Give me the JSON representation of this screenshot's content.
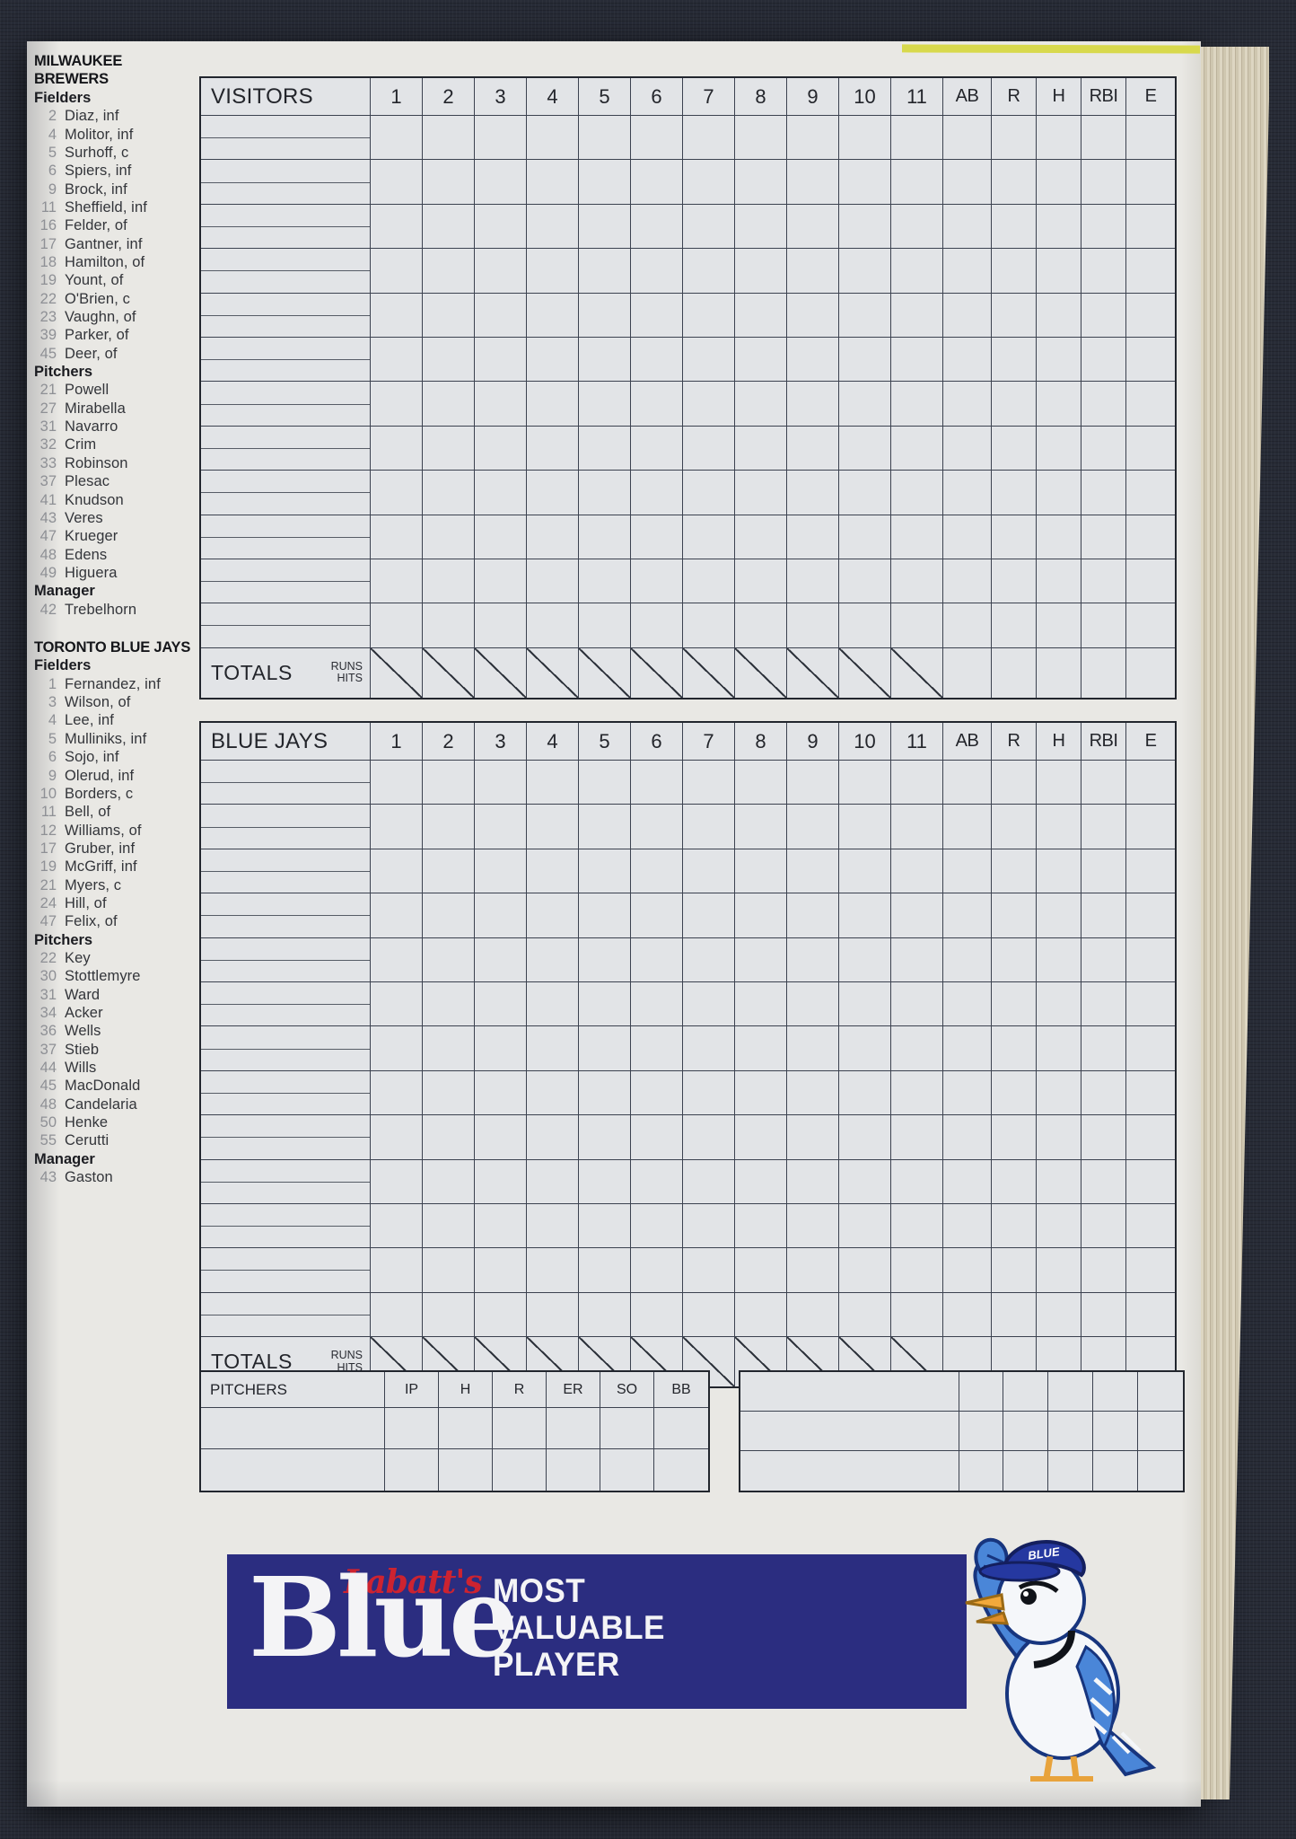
{
  "rosters": [
    {
      "title": "MILWAUKEE BREWERS",
      "sections": [
        {
          "label": "Fielders",
          "players": [
            {
              "num": "2",
              "name": "Diaz, inf"
            },
            {
              "num": "4",
              "name": "Molitor, inf"
            },
            {
              "num": "5",
              "name": "Surhoff, c"
            },
            {
              "num": "6",
              "name": "Spiers, inf"
            },
            {
              "num": "9",
              "name": "Brock, inf"
            },
            {
              "num": "11",
              "name": "Sheffield, inf"
            },
            {
              "num": "16",
              "name": "Felder, of"
            },
            {
              "num": "17",
              "name": "Gantner, inf"
            },
            {
              "num": "18",
              "name": "Hamilton, of"
            },
            {
              "num": "19",
              "name": "Yount, of"
            },
            {
              "num": "22",
              "name": "O'Brien, c"
            },
            {
              "num": "23",
              "name": "Vaughn, of"
            },
            {
              "num": "39",
              "name": "Parker, of"
            },
            {
              "num": "45",
              "name": "Deer, of"
            }
          ]
        },
        {
          "label": "Pitchers",
          "players": [
            {
              "num": "21",
              "name": "Powell"
            },
            {
              "num": "27",
              "name": "Mirabella"
            },
            {
              "num": "31",
              "name": "Navarro"
            },
            {
              "num": "32",
              "name": "Crim"
            },
            {
              "num": "33",
              "name": "Robinson"
            },
            {
              "num": "37",
              "name": "Plesac"
            },
            {
              "num": "41",
              "name": "Knudson"
            },
            {
              "num": "43",
              "name": "Veres"
            },
            {
              "num": "47",
              "name": "Krueger"
            },
            {
              "num": "48",
              "name": "Edens"
            },
            {
              "num": "49",
              "name": "Higuera"
            }
          ]
        },
        {
          "label": "Manager",
          "players": [
            {
              "num": "42",
              "name": "Trebelhorn"
            }
          ]
        }
      ]
    },
    {
      "title": "TORONTO BLUE JAYS",
      "sections": [
        {
          "label": "Fielders",
          "players": [
            {
              "num": "1",
              "name": "Fernandez, inf"
            },
            {
              "num": "3",
              "name": "Wilson, of"
            },
            {
              "num": "4",
              "name": "Lee, inf"
            },
            {
              "num": "5",
              "name": "Mulliniks, inf"
            },
            {
              "num": "6",
              "name": "Sojo, inf"
            },
            {
              "num": "9",
              "name": "Olerud, inf"
            },
            {
              "num": "10",
              "name": "Borders, c"
            },
            {
              "num": "11",
              "name": "Bell, of"
            },
            {
              "num": "12",
              "name": "Williams, of"
            },
            {
              "num": "17",
              "name": "Gruber, inf"
            },
            {
              "num": "19",
              "name": "McGriff, inf"
            },
            {
              "num": "21",
              "name": "Myers, c"
            },
            {
              "num": "24",
              "name": "Hill, of"
            },
            {
              "num": "47",
              "name": "Felix, of"
            }
          ]
        },
        {
          "label": "Pitchers",
          "players": [
            {
              "num": "22",
              "name": "Key"
            },
            {
              "num": "30",
              "name": "Stottlemyre"
            },
            {
              "num": "31",
              "name": "Ward"
            },
            {
              "num": "34",
              "name": "Acker"
            },
            {
              "num": "36",
              "name": "Wells"
            },
            {
              "num": "37",
              "name": "Stieb"
            },
            {
              "num": "44",
              "name": "Wills"
            },
            {
              "num": "45",
              "name": "MacDonald"
            },
            {
              "num": "48",
              "name": "Candelaria"
            },
            {
              "num": "50",
              "name": "Henke"
            },
            {
              "num": "55",
              "name": "Cerutti"
            }
          ]
        },
        {
          "label": "Manager",
          "players": [
            {
              "num": "43",
              "name": "Gaston"
            }
          ]
        }
      ]
    }
  ],
  "scorecards": [
    {
      "team_label": "VISITORS",
      "innings": [
        "1",
        "2",
        "3",
        "4",
        "5",
        "6",
        "7",
        "8",
        "9",
        "10",
        "11"
      ],
      "stats": [
        "AB",
        "R",
        "H",
        "RBI",
        "E"
      ],
      "body_rows": 12,
      "totals_label": "TOTALS",
      "runs_label": "RUNS",
      "hits_label": "HITS"
    },
    {
      "team_label": "BLUE JAYS",
      "innings": [
        "1",
        "2",
        "3",
        "4",
        "5",
        "6",
        "7",
        "8",
        "9",
        "10",
        "11"
      ],
      "stats": [
        "AB",
        "R",
        "H",
        "RBI",
        "E"
      ],
      "body_rows": 13,
      "totals_label": "TOTALS",
      "runs_label": "RUNS",
      "hits_label": "HITS"
    }
  ],
  "pitchers_table": {
    "label": "PITCHERS",
    "columns": [
      "IP",
      "H",
      "R",
      "ER",
      "SO",
      "BB"
    ],
    "body_rows": 2
  },
  "side_table": {
    "body_rows": 3,
    "stat_cols": 5
  },
  "ad": {
    "brand_script": "Labatt's",
    "brand_word": "Blue",
    "tagline_lines": [
      "MOST",
      "VALUABLE",
      "PLAYER"
    ],
    "banner_color": "#2b2d80",
    "script_color": "#cd2330"
  },
  "mascot": {
    "cap_text": "BLUE"
  }
}
